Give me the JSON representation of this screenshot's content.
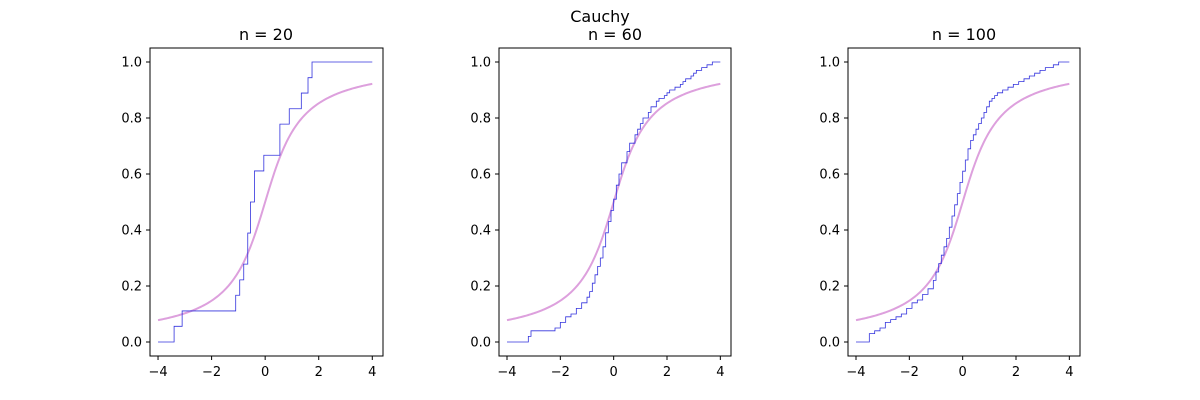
{
  "suptitle": "Cauchy",
  "colors": {
    "ecdf": "#3333dd",
    "cdf": "#dda0dd",
    "axes": "#000000"
  },
  "chart_data": [
    {
      "type": "line",
      "title": "n = 20",
      "xlabel": "",
      "ylabel": "",
      "xlim": [
        -4.3,
        4.4
      ],
      "ylim": [
        -0.05,
        1.05
      ],
      "xticks": [
        -4,
        -2,
        0,
        2,
        4
      ],
      "xtick_labels": [
        "−4",
        "−2",
        "0",
        "2",
        "4"
      ],
      "yticks": [
        0.0,
        0.2,
        0.4,
        0.6,
        0.8,
        1.0
      ],
      "ytick_labels": [
        "0.0",
        "0.2",
        "0.4",
        "0.6",
        "0.8",
        "1.0"
      ],
      "grid": false,
      "cdf_curve": {
        "type": "cauchy",
        "location": 0,
        "scale": 1,
        "x_range": [
          -4,
          4
        ]
      },
      "ecdf_steps": {
        "x": [
          -4.0,
          -3.4,
          -3.1,
          -1.1,
          -0.95,
          -0.8,
          -0.65,
          -0.55,
          -0.4,
          -0.05,
          0.55,
          0.9,
          1.35,
          1.6,
          1.75,
          2.2,
          4.0
        ],
        "y": [
          0.0,
          0.056,
          0.111,
          0.167,
          0.222,
          0.278,
          0.389,
          0.5,
          0.611,
          0.667,
          0.778,
          0.833,
          0.889,
          0.944,
          1.0,
          1.0,
          1.0
        ]
      }
    },
    {
      "type": "line",
      "title": "n = 60",
      "xlabel": "",
      "ylabel": "",
      "xlim": [
        -4.3,
        4.4
      ],
      "ylim": [
        -0.05,
        1.05
      ],
      "xticks": [
        -4,
        -2,
        0,
        2,
        4
      ],
      "xtick_labels": [
        "−4",
        "−2",
        "0",
        "2",
        "4"
      ],
      "yticks": [
        0.0,
        0.2,
        0.4,
        0.6,
        0.8,
        1.0
      ],
      "ytick_labels": [
        "0.0",
        "0.2",
        "0.4",
        "0.6",
        "0.8",
        "1.0"
      ],
      "grid": false,
      "cdf_curve": {
        "type": "cauchy",
        "location": 0,
        "scale": 1,
        "x_range": [
          -4,
          4
        ]
      },
      "ecdf_steps": {
        "x": [
          -4.0,
          -3.2,
          -3.1,
          -2.2,
          -2.0,
          -1.8,
          -1.6,
          -1.4,
          -1.2,
          -1.0,
          -0.9,
          -0.8,
          -0.7,
          -0.6,
          -0.5,
          -0.4,
          -0.3,
          -0.2,
          -0.1,
          0.0,
          0.1,
          0.2,
          0.3,
          0.5,
          0.6,
          0.8,
          0.9,
          1.0,
          1.1,
          1.3,
          1.4,
          1.6,
          1.7,
          1.9,
          2.0,
          2.1,
          2.3,
          2.5,
          2.6,
          2.7,
          2.9,
          3.0,
          3.1,
          3.3,
          3.5,
          3.7,
          3.8,
          4.0
        ],
        "y": [
          0.0,
          0.02,
          0.04,
          0.05,
          0.07,
          0.09,
          0.1,
          0.12,
          0.14,
          0.16,
          0.18,
          0.21,
          0.24,
          0.27,
          0.3,
          0.34,
          0.39,
          0.43,
          0.47,
          0.51,
          0.56,
          0.6,
          0.64,
          0.68,
          0.71,
          0.74,
          0.76,
          0.78,
          0.8,
          0.82,
          0.84,
          0.86,
          0.87,
          0.88,
          0.89,
          0.9,
          0.91,
          0.92,
          0.93,
          0.94,
          0.95,
          0.96,
          0.97,
          0.98,
          0.99,
          1.0,
          1.0,
          1.0
        ]
      }
    },
    {
      "type": "line",
      "title": "n = 100",
      "xlabel": "",
      "ylabel": "",
      "xlim": [
        -4.3,
        4.4
      ],
      "ylim": [
        -0.05,
        1.05
      ],
      "xticks": [
        -4,
        -2,
        0,
        2,
        4
      ],
      "xtick_labels": [
        "−4",
        "−2",
        "0",
        "2",
        "4"
      ],
      "yticks": [
        0.0,
        0.2,
        0.4,
        0.6,
        0.8,
        1.0
      ],
      "ytick_labels": [
        "0.0",
        "0.2",
        "0.4",
        "0.6",
        "0.8",
        "1.0"
      ],
      "grid": false,
      "cdf_curve": {
        "type": "cauchy",
        "location": 0,
        "scale": 1,
        "x_range": [
          -4,
          4
        ]
      },
      "ecdf_steps": {
        "x": [
          -4.0,
          -3.5,
          -3.3,
          -3.1,
          -2.9,
          -2.7,
          -2.5,
          -2.3,
          -2.1,
          -1.9,
          -1.7,
          -1.5,
          -1.3,
          -1.1,
          -1.0,
          -0.9,
          -0.8,
          -0.7,
          -0.6,
          -0.5,
          -0.4,
          -0.3,
          -0.2,
          -0.1,
          0.0,
          0.1,
          0.2,
          0.3,
          0.4,
          0.5,
          0.6,
          0.7,
          0.8,
          0.9,
          1.0,
          1.1,
          1.2,
          1.3,
          1.5,
          1.7,
          1.9,
          2.1,
          2.3,
          2.5,
          2.7,
          2.9,
          3.1,
          3.4,
          3.6,
          3.8,
          4.0
        ],
        "y": [
          0.0,
          0.03,
          0.04,
          0.05,
          0.07,
          0.08,
          0.09,
          0.1,
          0.12,
          0.14,
          0.15,
          0.17,
          0.19,
          0.22,
          0.25,
          0.28,
          0.31,
          0.34,
          0.37,
          0.41,
          0.45,
          0.49,
          0.53,
          0.57,
          0.61,
          0.65,
          0.69,
          0.72,
          0.74,
          0.76,
          0.78,
          0.8,
          0.82,
          0.84,
          0.86,
          0.87,
          0.88,
          0.89,
          0.9,
          0.91,
          0.92,
          0.93,
          0.94,
          0.95,
          0.96,
          0.97,
          0.98,
          0.99,
          1.0,
          1.0,
          1.0
        ]
      }
    }
  ]
}
